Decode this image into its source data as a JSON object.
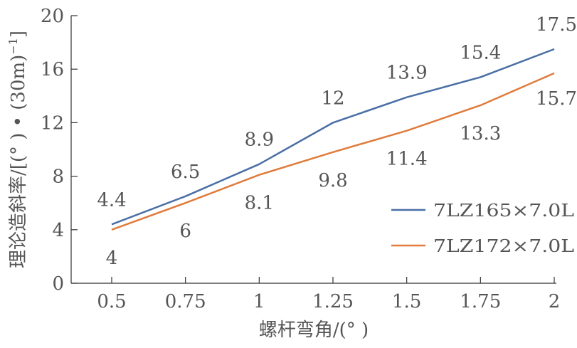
{
  "chart_data": {
    "type": "line",
    "title": "",
    "xlabel": "螺杆弯角/(° )",
    "ylabel": "理论造斜率/[(° ) • (30m)",
    "ylabel_sup": "−1",
    "ylabel_close": "]",
    "categories": [
      "0.5",
      "0.75",
      "1",
      "1.25",
      "1.5",
      "1.75",
      "2"
    ],
    "x": [
      0.5,
      0.75,
      1,
      1.25,
      1.5,
      1.75,
      2
    ],
    "ylim": [
      0,
      20
    ],
    "yticks": [
      "0",
      "4",
      "8",
      "12",
      "16",
      "20"
    ],
    "grid": false,
    "legend_position": "right",
    "series": [
      {
        "name": "7LZ165×7.0L",
        "color": "#4a6fa5",
        "values": [
          4.4,
          6.5,
          8.9,
          12,
          13.9,
          15.4,
          17.5
        ],
        "labels": [
          "4.4",
          "6.5",
          "8.9",
          "12",
          "13.9",
          "15.4",
          "17.5"
        ]
      },
      {
        "name": "7LZ172×7.0L",
        "color": "#e07b3c",
        "values": [
          4,
          6,
          8.1,
          9.8,
          11.4,
          13.3,
          15.7
        ],
        "labels": [
          "4",
          "6",
          "8.1",
          "9.8",
          "11.4",
          "13.3",
          "15.7"
        ]
      }
    ]
  }
}
